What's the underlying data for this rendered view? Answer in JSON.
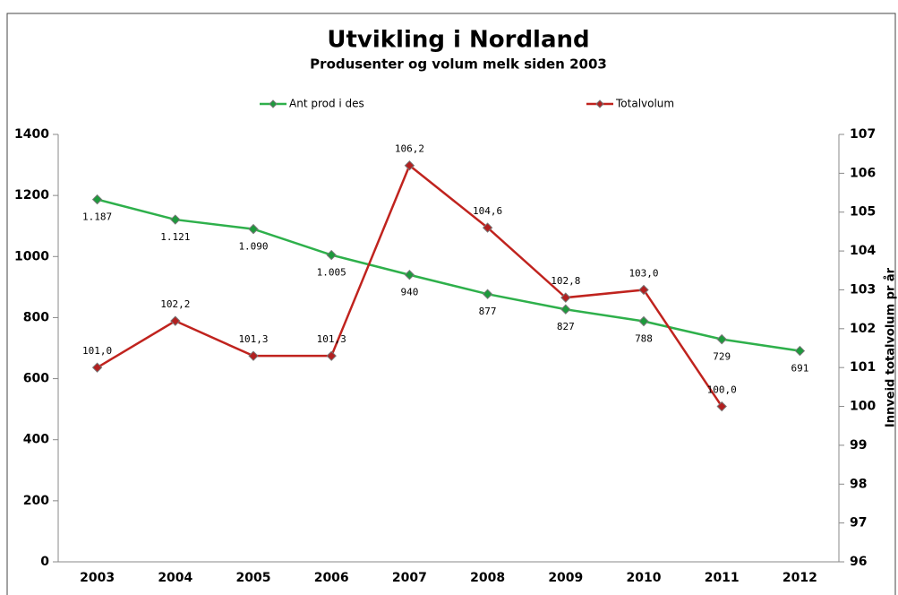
{
  "chart_data": {
    "type": "line",
    "title": "Utvikling i Nordland",
    "subtitle": "Produsenter og volum melk siden 2003",
    "y2_label": "Innveid totalvolum pr år",
    "categories": [
      "2003",
      "2004",
      "2005",
      "2006",
      "2007",
      "2008",
      "2009",
      "2010",
      "2011",
      "2012"
    ],
    "series": [
      {
        "name": "Ant prod i des",
        "color": "#2eb04b",
        "marker_color": "#1d9a3c",
        "values": [
          1187,
          1121,
          1090,
          1005,
          940,
          877,
          827,
          788,
          729,
          691
        ],
        "value_labels": [
          "1.187",
          "1.121",
          "1.090",
          "1.005",
          "940",
          "877",
          "827",
          "788",
          "729",
          "691"
        ]
      },
      {
        "name": "Totalvolum",
        "color": "#c0231e",
        "marker_color": "#b22020",
        "axis": "y2",
        "values": [
          101.0,
          102.2,
          101.3,
          101.3,
          106.2,
          104.6,
          102.8,
          103.0,
          100.0,
          null
        ],
        "value_labels": [
          "101,0",
          "102,2",
          "101,3",
          "101,3",
          "106,2",
          "104,6",
          "102,8",
          "103,0",
          "100,0",
          null
        ]
      }
    ],
    "ylim": [
      0,
      1400
    ],
    "yticks": [
      0,
      200,
      400,
      600,
      800,
      1000,
      1200,
      1400
    ],
    "y2lim": [
      96,
      107
    ],
    "y2ticks": [
      96,
      97,
      98,
      99,
      100,
      101,
      102,
      103,
      104,
      105,
      106,
      107
    ],
    "grid": false
  }
}
